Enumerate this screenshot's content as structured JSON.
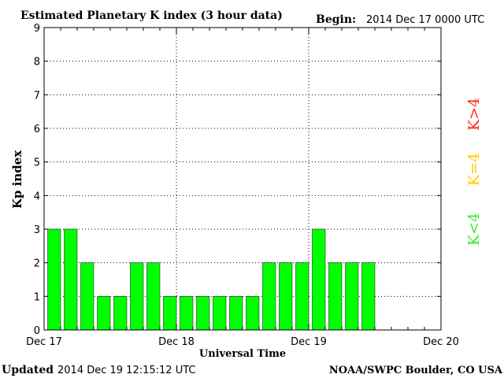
{
  "header": {
    "title": "Estimated Planetary K index (3 hour data)",
    "begin_label": "Begin:",
    "begin_value": "2014 Dec 17 0000 UTC"
  },
  "footer": {
    "updated_label": "Updated",
    "updated_value": "2014 Dec 19 12:15:12 UTC",
    "credit": "NOAA/SWPC Boulder, CO USA"
  },
  "legend": {
    "high": {
      "text": "K>4",
      "color": "#ff2a1a"
    },
    "equal": {
      "text": "K=4",
      "color": "#ffcc00"
    },
    "low": {
      "text": "K<4",
      "color": "#33ee33"
    }
  },
  "chart_data": {
    "type": "bar",
    "title": "Estimated Planetary K index (3 hour data)",
    "xlabel": "Universal Time",
    "ylabel": "Kp index",
    "ylim": [
      0,
      9
    ],
    "yticks": [
      0,
      1,
      2,
      3,
      4,
      5,
      6,
      7,
      8,
      9
    ],
    "x_ticks": [
      "Dec 17",
      "Dec 18",
      "Dec 19",
      "Dec 20"
    ],
    "slots_per_day": 8,
    "num_days": 3,
    "grid": true,
    "bar_color": "#00ff00",
    "values": [
      3,
      3,
      2,
      1,
      1,
      2,
      2,
      1,
      1,
      1,
      1,
      1,
      1,
      2,
      2,
      2,
      3,
      2,
      2,
      2
    ]
  }
}
